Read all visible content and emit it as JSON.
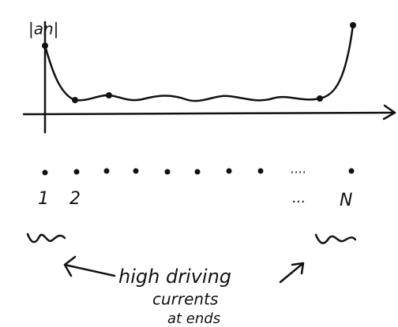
{
  "axis_label": "|an|",
  "dot_labels": {
    "first": "1",
    "second": "2",
    "ellipsis": "...",
    "last": "N"
  },
  "dots_ellipsis": "....",
  "annotation": [
    "high driving",
    "currents",
    "at ends"
  ]
}
